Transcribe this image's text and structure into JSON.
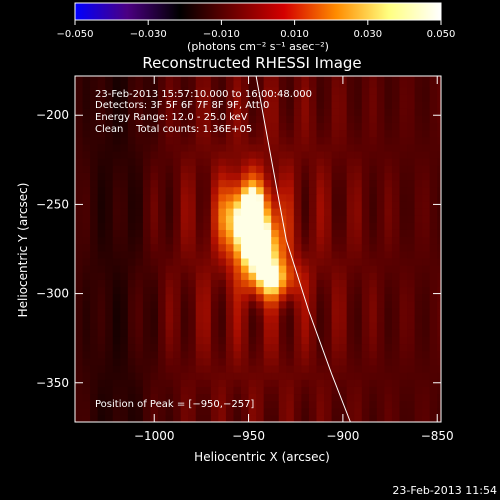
{
  "chart_data": {
    "type": "heatmap",
    "title": "Reconstructed RHESSI Image",
    "xlabel": "Heliocentric X (arcsec)",
    "ylabel": "Heliocentric Y (arcsec)",
    "xlim": [
      -1042,
      -848
    ],
    "ylim": [
      -372,
      -178
    ],
    "x_ticks": [
      -1000,
      -950,
      -900,
      -850
    ],
    "x_tick_labels": [
      "−1000",
      "−950",
      "−900",
      "−850"
    ],
    "y_ticks": [
      -200,
      -250,
      -300,
      -350
    ],
    "y_tick_labels": [
      "−200",
      "−250",
      "−300",
      "−350"
    ],
    "colorbar": {
      "range": [
        -0.05,
        0.05
      ],
      "ticks": [
        -0.05,
        -0.03,
        -0.01,
        0.01,
        0.03,
        0.05
      ],
      "tick_labels": [
        "−0.050",
        "−0.030",
        "−0.010",
        "0.010",
        "0.030",
        "0.050"
      ],
      "unit_label": "(photons cm⁻² s⁻¹ asec⁻²)",
      "colors": [
        "#0000ff",
        "#4b0082",
        "#000000",
        "#6b0000",
        "#d40000",
        "#ff8c00",
        "#ffff80",
        "#ffffff"
      ]
    },
    "sources": [
      {
        "x": -950,
        "y": -257,
        "peak": 0.05,
        "sx": 9,
        "sy": 14
      },
      {
        "x": -938,
        "y": -292,
        "peak": 0.03,
        "sx": 9,
        "sy": 8
      },
      {
        "x": -944,
        "y": -275,
        "peak": 0.032,
        "sx": 8,
        "sy": 10
      }
    ],
    "limb": [
      [
        -946,
        -178
      ],
      [
        -937,
        -230
      ],
      [
        -930,
        -270
      ],
      [
        -918,
        -310
      ],
      [
        -906,
        -345
      ],
      [
        -896,
        -372
      ]
    ],
    "annotations": [
      "23-Feb-2013 15:57:10.000 to 16:00:48.000",
      "Detectors: 3F 5F 6F 7F 8F 9F, Att 0",
      "Energy Range: 12.0 - 25.0 keV",
      "Clean    Total counts: 1.36E+05"
    ],
    "peak_label": "Position of Peak = [−950,−257]",
    "footer_date": "23-Feb-2013 11:54"
  }
}
